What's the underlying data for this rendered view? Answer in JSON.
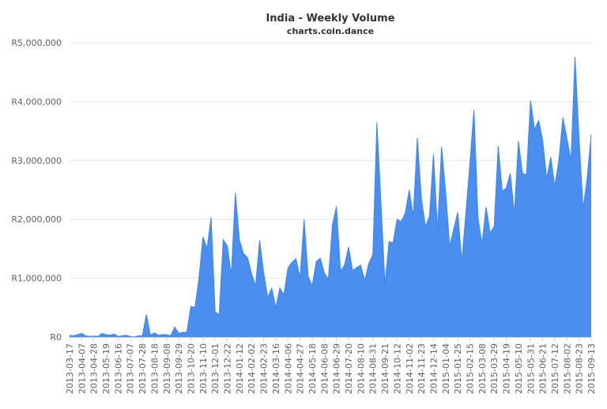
{
  "chart_data": {
    "type": "area",
    "title": "India - Weekly Volume",
    "subtitle": "charts.coin.dance",
    "xlabel": "",
    "ylabel": "",
    "ylim": [
      0,
      5000000
    ],
    "ytick_labels": [
      "R0",
      "R1,000,000",
      "R2,000,000",
      "R3,000,000",
      "R4,000,000",
      "R5,000,000"
    ],
    "ytick_values": [
      0,
      1000000,
      2000000,
      3000000,
      4000000,
      5000000
    ],
    "grid": true,
    "legend": "none",
    "color": "#4a8ff0",
    "x_tick_labels": [
      "2013-03-17",
      "2013-04-07",
      "2013-04-28",
      "2013-05-19",
      "2013-06-16",
      "2013-07-07",
      "2013-07-28",
      "2013-08-18",
      "2013-09-08",
      "2013-09-29",
      "2013-10-20",
      "2013-11-10",
      "2013-12-01",
      "2013-12-22",
      "2014-01-12",
      "2014-02-02",
      "2014-02-23",
      "2014-03-16",
      "2014-04-06",
      "2014-04-27",
      "2014-05-18",
      "2014-06-08",
      "2014-06-29",
      "2014-07-20",
      "2014-08-10",
      "2014-08-31",
      "2014-09-21",
      "2014-10-12",
      "2014-11-02",
      "2014-11-23",
      "2014-12-14",
      "2015-01-04",
      "2015-01-25",
      "2015-02-15",
      "2015-03-08",
      "2015-03-29",
      "2015-04-19",
      "2015-05-10",
      "2015-05-31",
      "2015-06-21",
      "2015-07-12",
      "2015-08-02",
      "2015-08-23",
      "2015-09-13"
    ],
    "tick_every": 3,
    "values": [
      30000,
      20000,
      40000,
      60000,
      20000,
      10000,
      15000,
      10000,
      60000,
      40000,
      30000,
      50000,
      10000,
      20000,
      30000,
      10000,
      0,
      20000,
      20000,
      380000,
      30000,
      70000,
      30000,
      40000,
      40000,
      20000,
      170000,
      60000,
      80000,
      80000,
      520000,
      500000,
      1000000,
      1700000,
      1500000,
      2030000,
      430000,
      380000,
      1650000,
      1550000,
      1050000,
      2450000,
      1650000,
      1420000,
      1350000,
      1080000,
      870000,
      1640000,
      1100000,
      670000,
      830000,
      500000,
      830000,
      720000,
      1170000,
      1270000,
      1330000,
      1000000,
      2000000,
      1030000,
      870000,
      1280000,
      1340000,
      1090000,
      980000,
      1900000,
      2220000,
      1120000,
      1220000,
      1530000,
      1130000,
      1180000,
      1220000,
      960000,
      1250000,
      1400000,
      3640000,
      2290000,
      900000,
      1620000,
      1600000,
      2000000,
      1960000,
      2100000,
      2500000,
      2050000,
      3380000,
      2360000,
      1880000,
      2050000,
      3100000,
      1800000,
      3230000,
      2470000,
      1540000,
      1830000,
      2120000,
      1280000,
      2100000,
      2950000,
      3860000,
      2030000,
      1580000,
      2210000,
      1770000,
      1880000,
      3240000,
      2480000,
      2530000,
      2780000,
      2090000,
      3330000,
      2780000,
      2760000,
      4020000,
      3520000,
      3680000,
      3340000,
      2690000,
      3060000,
      2560000,
      3000000,
      3730000,
      3370000,
      3000000,
      4760000,
      3370000,
      2180000,
      2700000,
      3440000
    ]
  }
}
